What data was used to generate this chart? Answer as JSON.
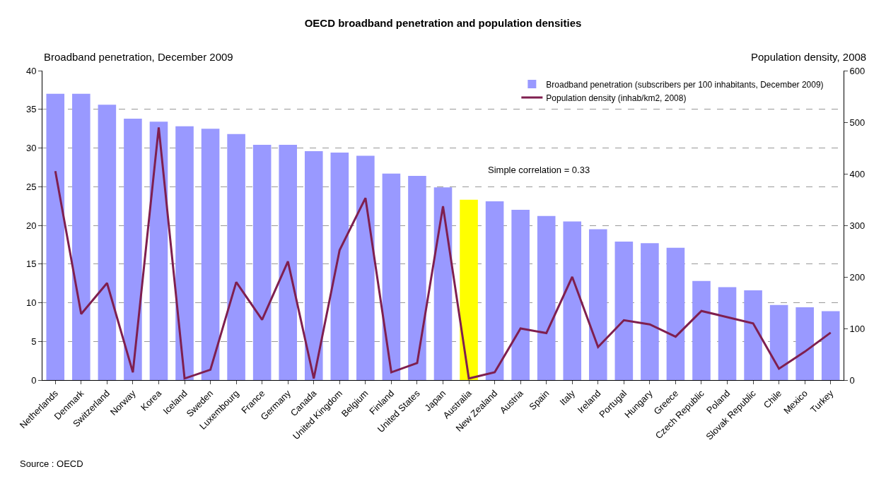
{
  "chart_data": {
    "type": "bar",
    "title": "OECD broadband penetration and population densities",
    "ylabel": "Broadband penetration, December 2009",
    "y2label": "Population density, 2008",
    "categories": [
      "Netherlands",
      "Denmark",
      "Switzerland",
      "Norway",
      "Korea",
      "Iceland",
      "Sweden",
      "Luxembourg",
      "France",
      "Germany",
      "Canada",
      "United Kingdom",
      "Belgium",
      "Finland",
      "United States",
      "Japan",
      "Australia",
      "New Zealand",
      "Austria",
      "Spain",
      "Italy",
      "Ireland",
      "Portugal",
      "Hungary",
      "Greece",
      "Czech Republic",
      "Poland",
      "Slovak Republic",
      "Chile",
      "Mexico",
      "Turkey"
    ],
    "series": [
      {
        "name": "Broadband penetration (subscribers per 100 inhabitants, December 2009)",
        "colors": [
          "#9999ff",
          "#9999ff",
          "#9999ff",
          "#9999ff",
          "#9999ff",
          "#9999ff",
          "#9999ff",
          "#9999ff",
          "#9999ff",
          "#9999ff",
          "#9999ff",
          "#9999ff",
          "#9999ff",
          "#9999ff",
          "#9999ff",
          "#9999ff",
          "#ffff00",
          "#9999ff",
          "#9999ff",
          "#9999ff",
          "#9999ff",
          "#9999ff",
          "#9999ff",
          "#9999ff",
          "#9999ff",
          "#9999ff",
          "#9999ff",
          "#9999ff",
          "#9999ff",
          "#9999ff",
          "#9999ff"
        ],
        "values": [
          37.0,
          37.0,
          35.6,
          33.8,
          33.4,
          32.8,
          32.5,
          31.8,
          30.4,
          30.4,
          29.6,
          29.4,
          29.0,
          26.7,
          26.4,
          24.9,
          23.3,
          23.1,
          22.0,
          21.2,
          20.5,
          19.5,
          17.9,
          17.7,
          17.1,
          12.8,
          12.0,
          11.6,
          9.7,
          9.4,
          8.9
        ]
      },
      {
        "name": "Population density (inhab/km2, 2008)",
        "type": "line",
        "axis": "y2",
        "color": "#7f1f4f",
        "values": [
          405,
          128,
          188,
          15,
          490,
          3,
          20,
          190,
          117,
          230,
          3,
          252,
          353,
          15,
          33,
          337,
          3,
          15,
          100,
          91,
          200,
          64,
          116,
          108,
          84,
          134,
          122,
          110,
          22,
          55,
          92
        ]
      }
    ],
    "ylim": [
      0,
      40
    ],
    "yticks": [
      0,
      5,
      10,
      15,
      20,
      25,
      30,
      35,
      40
    ],
    "y2lim": [
      0,
      600
    ],
    "y2ticks": [
      0,
      100,
      200,
      300,
      400,
      500,
      600
    ],
    "grid": "y",
    "legend": "top right",
    "marker": "none",
    "line_style": "solid",
    "annotations": [
      "Simple correlation = 0.33",
      "Source : OECD"
    ]
  }
}
